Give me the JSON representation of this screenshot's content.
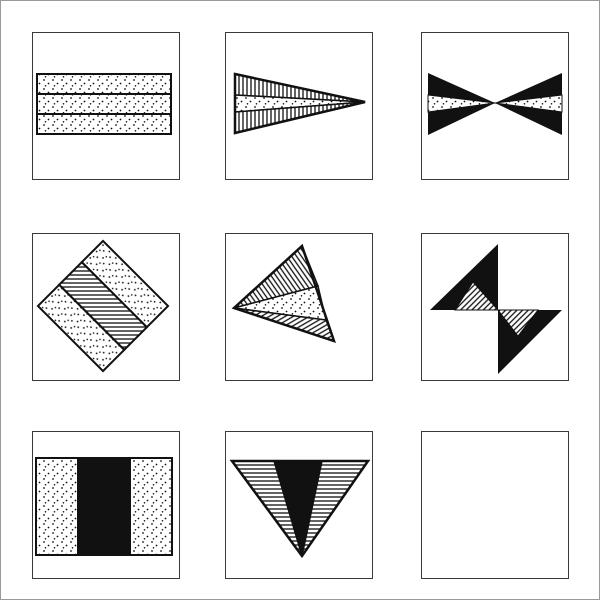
{
  "puzzle": {
    "grid": {
      "rows": 3,
      "cols": 3
    },
    "colors": {
      "ink": "#111111",
      "paper": "#ffffff",
      "frame": "#9a9a9a"
    },
    "cells": [
      {
        "row": 1,
        "col": 1,
        "shape": "horizontal-bands-rectangle",
        "fill": [
          "dots",
          "dots",
          "dots"
        ]
      },
      {
        "row": 1,
        "col": 2,
        "shape": "right-pointing-triangle",
        "fill": [
          "vertical-stripes",
          "dots",
          "vertical-stripes"
        ]
      },
      {
        "row": 1,
        "col": 3,
        "shape": "horizontal-bowtie",
        "fill": [
          "black",
          "dots",
          "black"
        ]
      },
      {
        "row": 2,
        "col": 1,
        "shape": "diagonal-square",
        "fill": [
          "dots",
          "stripes",
          "dots"
        ]
      },
      {
        "row": 2,
        "col": 2,
        "shape": "fan-triangle",
        "fill": [
          "stripes",
          "dots",
          "stripes"
        ]
      },
      {
        "row": 2,
        "col": 3,
        "shape": "diagonal-bowtie",
        "fill": [
          "black",
          "stripes",
          "black"
        ]
      },
      {
        "row": 3,
        "col": 1,
        "shape": "vertical-bands-rectangle",
        "fill": [
          "dots",
          "black",
          "dots"
        ]
      },
      {
        "row": 3,
        "col": 2,
        "shape": "down-pointing-triangle",
        "fill": [
          "horizontal-stripes",
          "black",
          "horizontal-stripes"
        ]
      },
      {
        "row": 3,
        "col": 3,
        "shape": "empty",
        "fill": []
      }
    ]
  }
}
